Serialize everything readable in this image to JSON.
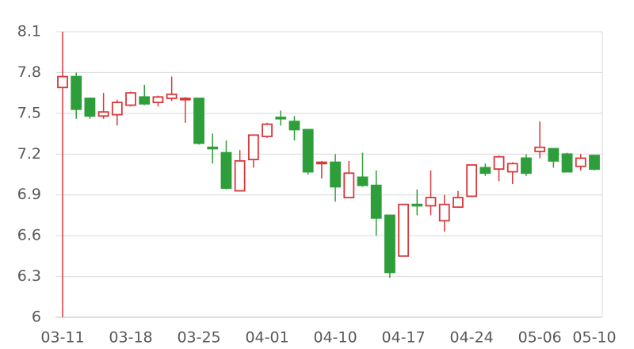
{
  "chart_data": {
    "type": "candlestick",
    "categories": [
      "03-11",
      null,
      null,
      null,
      null,
      "03-18",
      null,
      null,
      null,
      null,
      "03-25",
      null,
      null,
      null,
      null,
      "04-01",
      null,
      null,
      null,
      null,
      "04-10",
      null,
      null,
      null,
      null,
      "04-17",
      null,
      null,
      null,
      null,
      "04-24",
      null,
      null,
      null,
      null,
      "05-06",
      null,
      null,
      null,
      "05-10"
    ],
    "open": [
      7.69,
      7.77,
      7.61,
      7.48,
      7.49,
      7.56,
      7.62,
      7.58,
      7.61,
      7.6,
      7.61,
      7.25,
      7.21,
      6.93,
      7.16,
      7.33,
      7.47,
      7.44,
      7.38,
      7.13,
      7.14,
      6.88,
      7.03,
      6.97,
      6.75,
      6.45,
      6.83,
      6.82,
      6.71,
      6.81,
      6.89,
      7.1,
      7.09,
      7.07,
      7.17,
      7.22,
      7.24,
      7.2,
      7.11,
      7.19
    ],
    "high": [
      8.1,
      7.8,
      7.61,
      7.65,
      7.6,
      7.66,
      7.71,
      7.63,
      7.77,
      7.62,
      7.61,
      7.35,
      7.3,
      7.23,
      7.34,
      7.43,
      7.52,
      7.48,
      7.38,
      7.15,
      7.2,
      7.15,
      7.21,
      7.08,
      6.75,
      6.83,
      6.94,
      7.08,
      6.9,
      6.93,
      7.12,
      7.13,
      7.19,
      7.14,
      7.2,
      7.44,
      7.24,
      7.21,
      7.2,
      7.19
    ],
    "low": [
      6.0,
      7.46,
      7.46,
      7.46,
      7.41,
      7.55,
      7.56,
      7.55,
      7.59,
      7.43,
      7.27,
      7.13,
      6.94,
      6.93,
      7.1,
      7.32,
      7.41,
      7.3,
      7.05,
      7.02,
      6.85,
      6.88,
      6.96,
      6.6,
      6.29,
      6.45,
      6.75,
      6.75,
      6.63,
      6.81,
      6.89,
      7.04,
      7.0,
      6.98,
      7.04,
      7.17,
      7.1,
      7.07,
      7.08,
      7.08
    ],
    "close": [
      7.77,
      7.53,
      7.48,
      7.51,
      7.58,
      7.65,
      7.57,
      7.62,
      7.64,
      7.61,
      7.28,
      7.24,
      6.95,
      7.15,
      7.34,
      7.42,
      7.46,
      7.38,
      7.07,
      7.14,
      6.96,
      7.06,
      6.97,
      6.73,
      6.33,
      6.83,
      6.82,
      6.88,
      6.83,
      6.88,
      7.12,
      7.06,
      7.18,
      7.13,
      7.06,
      7.25,
      7.15,
      7.07,
      7.17,
      7.09
    ],
    "up_color": "#d9383a",
    "down_color": "#2e9e3a",
    "ylim": [
      6,
      8.1
    ],
    "yticks": [
      6,
      6.3,
      6.6,
      6.9,
      7.2,
      7.5,
      7.8,
      8.1
    ],
    "grid": true
  }
}
